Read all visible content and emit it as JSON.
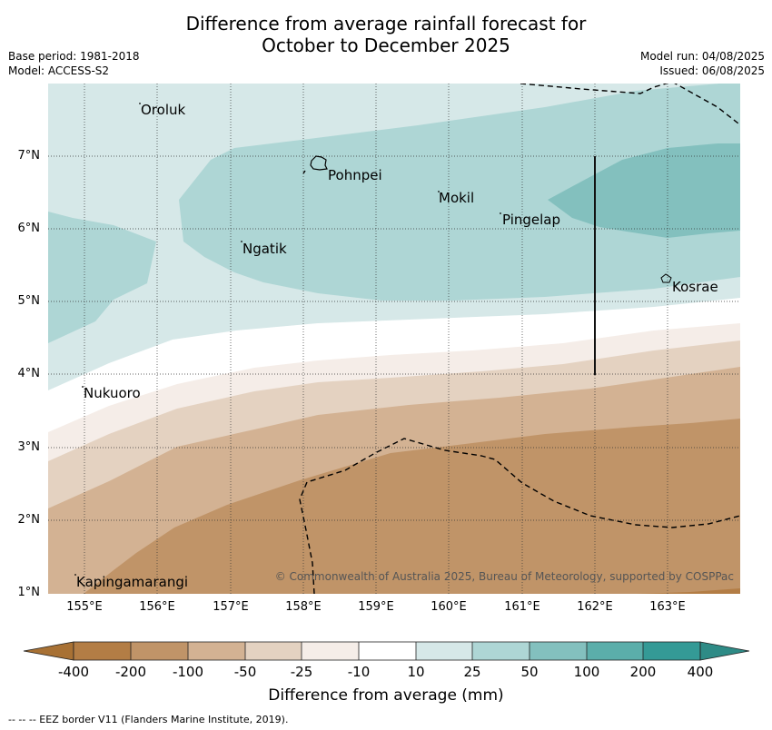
{
  "title_line1": "Difference from average rainfall forecast for",
  "title_line2": "October to December 2025",
  "meta_left": {
    "base_period": "Base period: 1981-2018",
    "model": "Model: ACCESS-S2"
  },
  "meta_right": {
    "model_run": "Model run: 04/08/2025",
    "issued": "Issued: 06/08/2025"
  },
  "latitude_labels": [
    "7°N",
    "6°N",
    "5°N",
    "4°N",
    "3°N",
    "2°N",
    "1°N"
  ],
  "longitude_labels": [
    "155°E",
    "156°E",
    "157°E",
    "158°E",
    "159°E",
    "160°E",
    "161°E",
    "162°E",
    "163°E"
  ],
  "places": [
    "Oroluk",
    "Pohnpei",
    "Mokil",
    "Pingelap",
    "Ngatik",
    "Kosrae",
    "Nukuoro",
    "Kapingamarangi"
  ],
  "copyright": "© Commonwealth of Australia 2025, Bureau of Meteorology, supported by COSPPac",
  "colorbar": {
    "labels": [
      "-400",
      "-200",
      "-100",
      "-50",
      "-25",
      "-10",
      "10",
      "25",
      "50",
      "100",
      "200",
      "400"
    ],
    "colors": [
      "#a87134",
      "#b37d45",
      "#c09468",
      "#d3b293",
      "#e4d2c1",
      "#f5ede8",
      "#ffffff",
      "#d6e8e8",
      "#aed6d5",
      "#83c0be",
      "#5baeaa",
      "#349a96",
      "#2e8b86"
    ],
    "title": "Difference from average (mm)"
  },
  "footer": "--  --  -- EEZ border V11 (Flanders Marine Institute, 2019)."
}
